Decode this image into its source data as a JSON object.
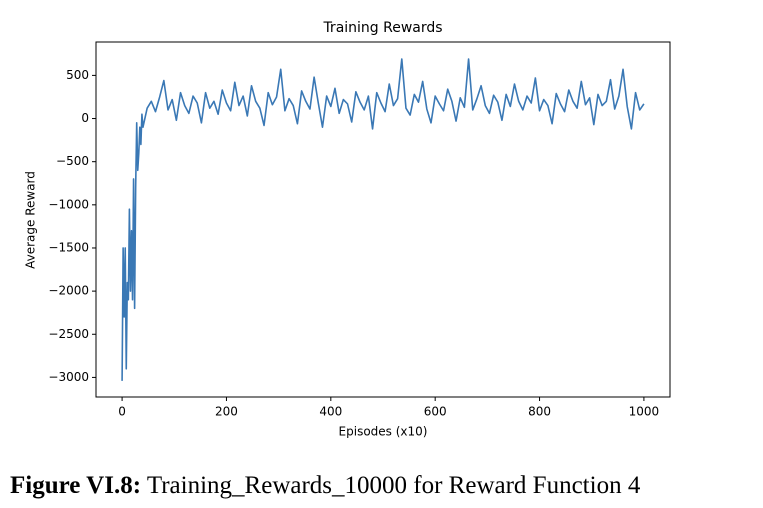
{
  "chart_data": {
    "type": "line",
    "title": "Training Rewards",
    "xlabel": "Episodes (x10)",
    "ylabel": "Average Reward",
    "color": "#3a78b5",
    "x": [
      0,
      2,
      4,
      6,
      8,
      10,
      12,
      14,
      16,
      18,
      20,
      22,
      24,
      26,
      28,
      30,
      32,
      34,
      36,
      38,
      40,
      48,
      56,
      64,
      72,
      80,
      88,
      96,
      104,
      112,
      120,
      128,
      136,
      144,
      152,
      160,
      168,
      176,
      184,
      192,
      200,
      208,
      216,
      224,
      232,
      240,
      248,
      256,
      264,
      272,
      280,
      288,
      296,
      304,
      312,
      320,
      328,
      336,
      344,
      352,
      360,
      368,
      376,
      384,
      392,
      400,
      408,
      416,
      424,
      432,
      440,
      448,
      456,
      464,
      472,
      480,
      488,
      496,
      504,
      512,
      520,
      528,
      536,
      544,
      552,
      560,
      568,
      576,
      584,
      592,
      600,
      608,
      616,
      624,
      632,
      640,
      648,
      656,
      664,
      672,
      680,
      688,
      696,
      704,
      712,
      720,
      728,
      736,
      744,
      752,
      760,
      768,
      776,
      784,
      792,
      800,
      808,
      816,
      824,
      832,
      840,
      848,
      856,
      864,
      872,
      880,
      888,
      896,
      904,
      912,
      920,
      928,
      936,
      944,
      952,
      960,
      968,
      976,
      984,
      992,
      1000
    ],
    "values": [
      -3040,
      -1500,
      -2300,
      -1500,
      -2900,
      -1900,
      -2100,
      -1050,
      -2000,
      -1300,
      -2100,
      -700,
      -2200,
      -800,
      -50,
      -600,
      -400,
      -100,
      -300,
      50,
      -100,
      120,
      200,
      80,
      250,
      440,
      100,
      220,
      -20,
      300,
      150,
      60,
      260,
      180,
      -50,
      300,
      120,
      200,
      50,
      330,
      180,
      90,
      420,
      150,
      260,
      30,
      380,
      200,
      120,
      -80,
      300,
      160,
      250,
      570,
      90,
      230,
      150,
      -60,
      320,
      200,
      110,
      480,
      180,
      -100,
      260,
      140,
      350,
      60,
      220,
      170,
      -40,
      310,
      190,
      100,
      260,
      -120,
      300,
      180,
      80,
      400,
      150,
      230,
      690,
      120,
      40,
      280,
      190,
      430,
      110,
      -50,
      260,
      170,
      90,
      340,
      200,
      -30,
      240,
      130,
      690,
      100,
      230,
      380,
      150,
      60,
      270,
      190,
      -20,
      280,
      140,
      400,
      200,
      100,
      260,
      180,
      470,
      90,
      220,
      150,
      -60,
      290,
      170,
      80,
      330,
      200,
      120,
      430,
      160,
      240,
      -70,
      280,
      150,
      200,
      450,
      110,
      260,
      570,
      140,
      -120,
      300,
      100,
      170
    ],
    "xlim": [
      -50,
      1050
    ],
    "ylim": [
      -3227,
      887
    ],
    "xticks": [
      0,
      200,
      400,
      600,
      800,
      1000
    ],
    "yticks": [
      {
        "value": -3000,
        "label": "−3000"
      },
      {
        "value": -2500,
        "label": "−2500"
      },
      {
        "value": -2000,
        "label": "−2000"
      },
      {
        "value": -1500,
        "label": "−1500"
      },
      {
        "value": -1000,
        "label": "−1000"
      },
      {
        "value": -500,
        "label": "−500"
      },
      0,
      500
    ]
  },
  "caption": {
    "label": "Figure VI.8:",
    "text": "Training_Rewards_10000 for Reward Function 4"
  }
}
